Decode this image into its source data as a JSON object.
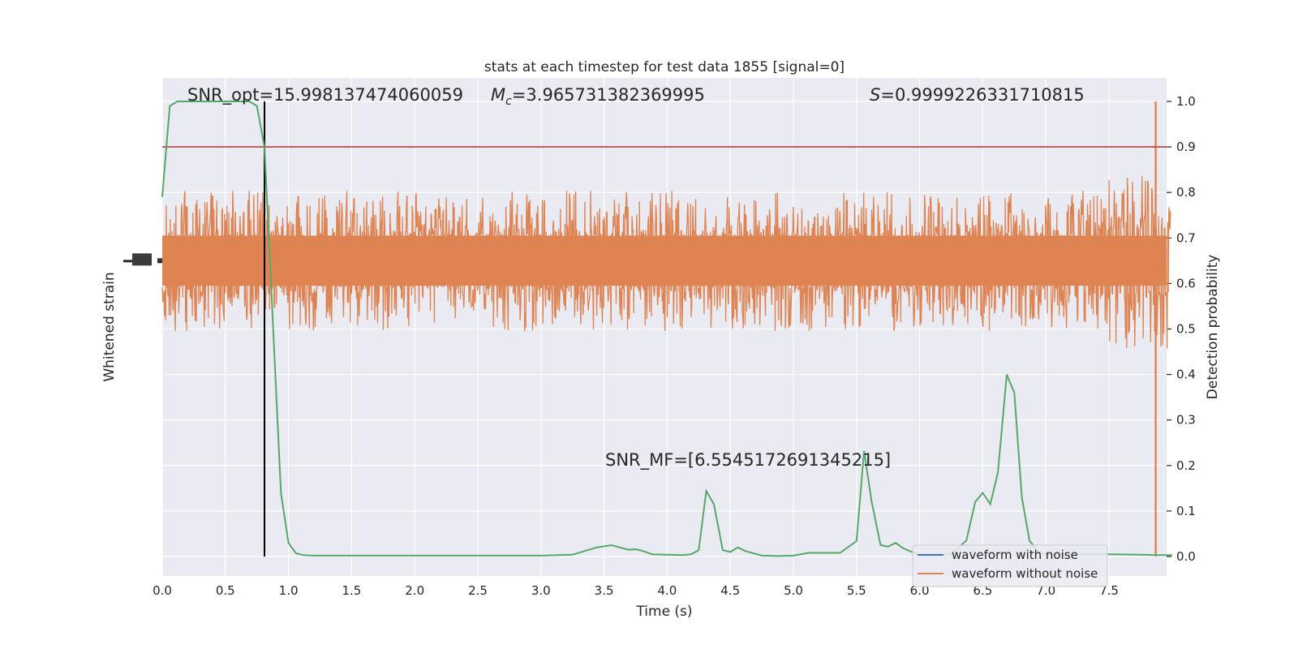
{
  "chart_data": {
    "type": "line",
    "title": "stats at each timestep for test data 1855 [signal=0]",
    "xlabel": "Time (s)",
    "ylabel_left": "Whitened strain",
    "ylabel_right": "Detection probability",
    "xlim": [
      0,
      8.0
    ],
    "ylim_right": [
      -0.05,
      1.05
    ],
    "x_ticks": [
      "0.0",
      "0.5",
      "1.0",
      "1.5",
      "2.0",
      "2.5",
      "3.0",
      "3.5",
      "4.0",
      "4.5",
      "5.0",
      "5.5",
      "6.0",
      "6.5",
      "7.0",
      "7.5"
    ],
    "y_ticks_right": [
      "0.0",
      "0.1",
      "0.2",
      "0.3",
      "0.4",
      "0.5",
      "0.6",
      "0.7",
      "0.8",
      "0.9",
      "1.0"
    ],
    "grid": true,
    "legend_position": "lower-right",
    "annotations": {
      "snr_opt": "SNR_opt=15.998137474060059",
      "mc_symbol": "M",
      "mc_sub": "c",
      "mc_value": "=3.965731382369995",
      "s_symbol": "S",
      "s_value": "=0.9999226331710815",
      "snr_mf": "SNR_MF=[6.5545172691345215]"
    },
    "threshold": 0.9,
    "vertical_marker_x": 0.81,
    "series": [
      {
        "name": "waveform with noise",
        "color": "#4c72b0"
      },
      {
        "name": "waveform without noise",
        "color": "#dd8452",
        "center_probability_equiv": 0.65,
        "typical_span": [
          0.52,
          0.8
        ],
        "spike_x": 7.87
      },
      {
        "color": "#55a868",
        "x": [
          0.0,
          0.06,
          0.12,
          0.19,
          0.25,
          0.31,
          0.37,
          0.44,
          0.5,
          0.56,
          0.62,
          0.69,
          0.75,
          0.81,
          0.87,
          0.94,
          1.0,
          1.06,
          1.12,
          1.19,
          1.25,
          1.5,
          1.75,
          2.0,
          2.25,
          2.5,
          2.75,
          3.0,
          3.25,
          3.44,
          3.56,
          3.69,
          3.75,
          3.81,
          3.88,
          4.0,
          4.12,
          4.19,
          4.25,
          4.31,
          4.37,
          4.44,
          4.5,
          4.56,
          4.62,
          4.75,
          4.88,
          5.0,
          5.12,
          5.25,
          5.37,
          5.5,
          5.56,
          5.62,
          5.69,
          5.75,
          5.81,
          5.87,
          5.94,
          6.0,
          6.12,
          6.25,
          6.37,
          6.44,
          6.5,
          6.56,
          6.62,
          6.69,
          6.75,
          6.81,
          6.87,
          6.94,
          7.0,
          7.12,
          7.25,
          7.5,
          7.75,
          7.87,
          8.0
        ],
        "y": [
          0.79,
          0.99,
          1.0,
          1.0,
          1.0,
          1.0,
          1.0,
          1.0,
          1.0,
          1.0,
          1.0,
          1.0,
          0.99,
          0.9,
          0.55,
          0.14,
          0.03,
          0.007,
          0.003,
          0.002,
          0.002,
          0.002,
          0.002,
          0.002,
          0.002,
          0.002,
          0.002,
          0.002,
          0.004,
          0.02,
          0.025,
          0.015,
          0.016,
          0.012,
          0.005,
          0.004,
          0.003,
          0.005,
          0.014,
          0.144,
          0.115,
          0.014,
          0.01,
          0.02,
          0.012,
          0.002,
          0.001,
          0.002,
          0.008,
          0.008,
          0.008,
          0.034,
          0.232,
          0.12,
          0.025,
          0.022,
          0.03,
          0.018,
          0.01,
          0.005,
          0.005,
          0.005,
          0.035,
          0.12,
          0.14,
          0.115,
          0.185,
          0.4,
          0.36,
          0.13,
          0.035,
          0.01,
          0.005,
          0.005,
          0.005,
          0.005,
          0.004,
          0.003,
          0.003
        ]
      }
    ]
  }
}
